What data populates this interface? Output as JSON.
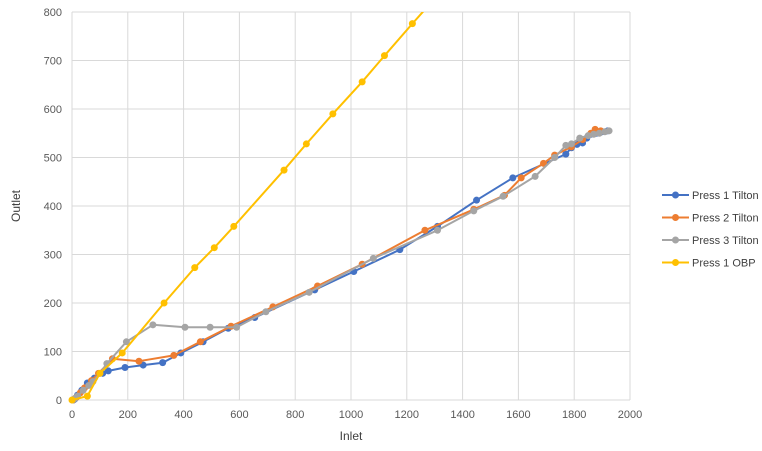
{
  "chart_data": {
    "type": "line",
    "xlabel": "Inlet",
    "ylabel": "Outlet",
    "xlim": [
      0,
      2000
    ],
    "ylim": [
      0,
      800
    ],
    "x_ticks": [
      0,
      200,
      400,
      600,
      800,
      1000,
      1200,
      1400,
      1600,
      1800,
      2000
    ],
    "y_ticks": [
      0,
      100,
      200,
      300,
      400,
      500,
      600,
      700,
      800
    ],
    "grid": true,
    "legend_position": "right",
    "series": [
      {
        "name": "Press 1 Tilton",
        "color": "#4472C4",
        "points": [
          [
            5,
            0
          ],
          [
            10,
            2
          ],
          [
            20,
            10
          ],
          [
            35,
            20
          ],
          [
            55,
            35
          ],
          [
            80,
            45
          ],
          [
            110,
            55
          ],
          [
            130,
            60
          ],
          [
            190,
            67
          ],
          [
            255,
            72
          ],
          [
            325,
            77
          ],
          [
            390,
            97
          ],
          [
            470,
            120
          ],
          [
            560,
            148
          ],
          [
            655,
            170
          ],
          [
            870,
            227
          ],
          [
            1010,
            265
          ],
          [
            1175,
            310
          ],
          [
            1310,
            358
          ],
          [
            1450,
            412
          ],
          [
            1580,
            458
          ],
          [
            1770,
            507
          ],
          [
            1790,
            520
          ],
          [
            1810,
            527
          ],
          [
            1830,
            530
          ],
          [
            1845,
            540
          ],
          [
            1860,
            548
          ],
          [
            1880,
            550
          ],
          [
            1900,
            553
          ],
          [
            1920,
            555
          ]
        ]
      },
      {
        "name": "Press 2 Tilton",
        "color": "#ED7D31",
        "points": [
          [
            3,
            0
          ],
          [
            15,
            5
          ],
          [
            30,
            15
          ],
          [
            45,
            25
          ],
          [
            70,
            40
          ],
          [
            95,
            55
          ],
          [
            145,
            85
          ],
          [
            240,
            80
          ],
          [
            365,
            92
          ],
          [
            460,
            120
          ],
          [
            570,
            152
          ],
          [
            720,
            192
          ],
          [
            880,
            235
          ],
          [
            1040,
            280
          ],
          [
            1265,
            350
          ],
          [
            1440,
            393
          ],
          [
            1550,
            422
          ],
          [
            1610,
            458
          ],
          [
            1690,
            488
          ],
          [
            1730,
            505
          ],
          [
            1790,
            522
          ],
          [
            1830,
            537
          ],
          [
            1860,
            550
          ],
          [
            1875,
            558
          ],
          [
            1895,
            555
          ]
        ]
      },
      {
        "name": "Press 3 Tilton",
        "color": "#A5A5A5",
        "points": [
          [
            2,
            0
          ],
          [
            10,
            3
          ],
          [
            20,
            8
          ],
          [
            40,
            20
          ],
          [
            60,
            30
          ],
          [
            75,
            38
          ],
          [
            100,
            55
          ],
          [
            125,
            75
          ],
          [
            195,
            120
          ],
          [
            290,
            155
          ],
          [
            405,
            150
          ],
          [
            495,
            150
          ],
          [
            590,
            150
          ],
          [
            695,
            182
          ],
          [
            850,
            222
          ],
          [
            1080,
            292
          ],
          [
            1310,
            350
          ],
          [
            1440,
            390
          ],
          [
            1545,
            420
          ],
          [
            1660,
            461
          ],
          [
            1730,
            500
          ],
          [
            1770,
            525
          ],
          [
            1790,
            528
          ],
          [
            1820,
            540
          ],
          [
            1850,
            545
          ],
          [
            1870,
            548
          ],
          [
            1890,
            550
          ],
          [
            1910,
            553
          ],
          [
            1925,
            555
          ]
        ]
      },
      {
        "name": "Press 1 OBP",
        "color": "#FFC000",
        "points": [
          [
            0,
            0
          ],
          [
            55,
            8
          ],
          [
            100,
            55
          ],
          [
            180,
            97
          ],
          [
            330,
            200
          ],
          [
            440,
            273
          ],
          [
            510,
            314
          ],
          [
            580,
            358
          ],
          [
            760,
            474
          ],
          [
            840,
            528
          ],
          [
            935,
            590
          ],
          [
            1040,
            656
          ],
          [
            1120,
            710
          ],
          [
            1220,
            776
          ],
          [
            1265,
            805
          ]
        ]
      }
    ]
  }
}
